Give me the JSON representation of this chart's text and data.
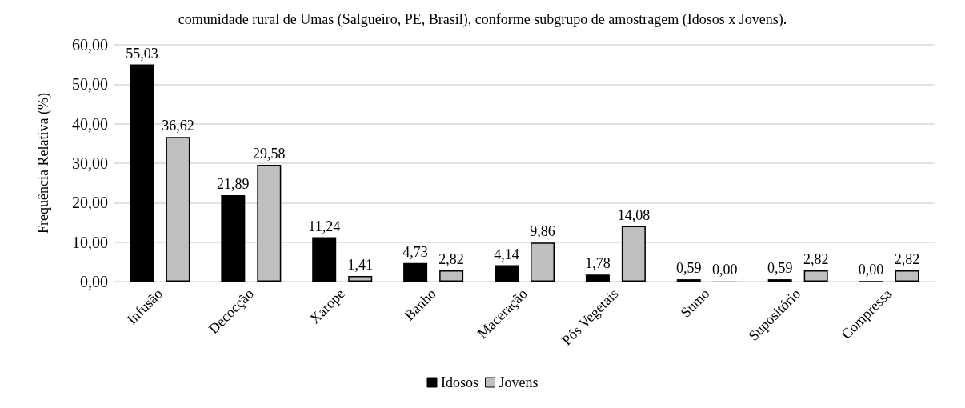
{
  "chart_data": {
    "type": "bar",
    "title": "comunidade rural de Umas (Salgueiro, PE, Brasil), conforme subgrupo de amostragem (Idosos x Jovens).",
    "ylabel": "Frequência Relativa (%)",
    "categories": [
      "Infusão",
      "Decocção",
      "Xarope",
      "Banho",
      "Maceração",
      "Pós Vegetais",
      "Sumo",
      "Supositório",
      "Compressa"
    ],
    "series": [
      {
        "name": "Idosos",
        "color": "#000000",
        "values": [
          55.03,
          21.89,
          11.24,
          4.73,
          4.14,
          1.78,
          0.59,
          0.59,
          0.0
        ],
        "value_labels": [
          "55,03",
          "21,89",
          "11,24",
          "4,73",
          "4,14",
          "1,78",
          "0,59",
          "0,59",
          "0,00"
        ]
      },
      {
        "name": "Jovens",
        "color": "#bfbfbf",
        "values": [
          36.62,
          29.58,
          1.41,
          2.82,
          9.86,
          14.08,
          0.0,
          2.82,
          2.82
        ],
        "value_labels": [
          "36,62",
          "29,58",
          "1,41",
          "2,82",
          "9,86",
          "14,08",
          "0,00",
          "2,82",
          "2,82"
        ]
      }
    ],
    "ylim": [
      0,
      60
    ],
    "yticks": [
      {
        "value": 0,
        "label": "0,00"
      },
      {
        "value": 10,
        "label": "10,00"
      },
      {
        "value": 20,
        "label": "20,00"
      },
      {
        "value": 30,
        "label": "30,00"
      },
      {
        "value": 40,
        "label": "40,00"
      },
      {
        "value": 50,
        "label": "50,00"
      },
      {
        "value": 60,
        "label": "60,00"
      }
    ],
    "grid": "y",
    "legend": "bottom"
  }
}
